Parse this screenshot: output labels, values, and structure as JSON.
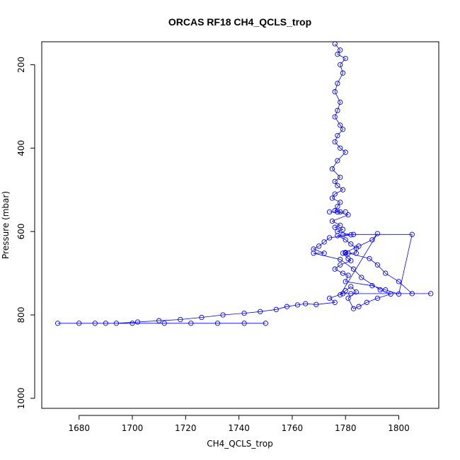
{
  "chart_data": {
    "type": "scatter",
    "title": "ORCAS RF18 CH4_QCLS_trop",
    "xlabel": "CH4_QCLS_trop",
    "ylabel": "Pressure (mbar)",
    "xlim": [
      1666,
      1815
    ],
    "ylim": [
      1024,
      145
    ],
    "y_reversed": true,
    "x_ticks": [
      1680,
      1700,
      1720,
      1740,
      1760,
      1780,
      1800
    ],
    "y_ticks": [
      200,
      400,
      600,
      800,
      1000
    ],
    "grid": false,
    "legend": "none",
    "series": [
      {
        "color": "#0000ff",
        "marker": "open-circle",
        "connected": true,
        "x": [
          1776,
          1778,
          1777,
          1780,
          1778,
          1779,
          1777,
          1776,
          1778,
          1777,
          1776,
          1778,
          1779,
          1777,
          1776,
          1778,
          1780,
          1777,
          1775,
          1778,
          1776,
          1777,
          1779,
          1776,
          1775,
          1778,
          1777,
          1776,
          1778,
          1774,
          1780,
          1777,
          1781,
          1775,
          1778,
          1776,
          1779,
          1777,
          1782,
          1779,
          1777,
          1780,
          1782,
          1784,
          1784,
          1781,
          1780,
          1779,
          1781,
          1782,
          1778,
          1776,
          1779,
          1781,
          1780,
          1790,
          1795,
          1800,
          1805,
          1783,
          1774,
          1772,
          1770,
          1768,
          1772,
          1768,
          1778,
          1783,
          1786,
          1793,
          1797,
          1792,
          1788,
          1785,
          1783,
          1781,
          1784,
          1782,
          1780,
          1778,
          1792,
          1790,
          1785,
          1780,
          1789,
          1792,
          1795,
          1800,
          1805,
          1812,
          1782,
          1779,
          1774,
          1776,
          1769,
          1765,
          1762,
          1758,
          1754,
          1748,
          1742,
          1734,
          1726,
          1718,
          1710,
          1702,
          1694,
          1686,
          1680,
          1672,
          1690,
          1700,
          1712,
          1722,
          1732,
          1742,
          1750
        ],
        "y": [
          150,
          165,
          175,
          185,
          200,
          220,
          245,
          265,
          290,
          310,
          325,
          345,
          355,
          370,
          385,
          400,
          410,
          430,
          450,
          470,
          480,
          490,
          500,
          510,
          520,
          530,
          540,
          550,
          553,
          553,
          553,
          553,
          560,
          575,
          585,
          590,
          595,
          600,
          608,
          608,
          610,
          620,
          630,
          640,
          652,
          652,
          652,
          652,
          665,
          670,
          680,
          690,
          700,
          705,
          720,
          730,
          740,
          750,
          607,
          607,
          615,
          625,
          635,
          642,
          652,
          652,
          667,
          690,
          710,
          740,
          750,
          760,
          770,
          780,
          785,
          760,
          745,
          732,
          742,
          752,
          605,
          620,
          635,
          650,
          665,
          680,
          700,
          720,
          749,
          749,
          749,
          749,
          760,
          770,
          775,
          773,
          776,
          780,
          787,
          792,
          796,
          800,
          806,
          811,
          814,
          817,
          820,
          820,
          820,
          820,
          820,
          820,
          820,
          820,
          820,
          820,
          820
        ]
      }
    ]
  }
}
